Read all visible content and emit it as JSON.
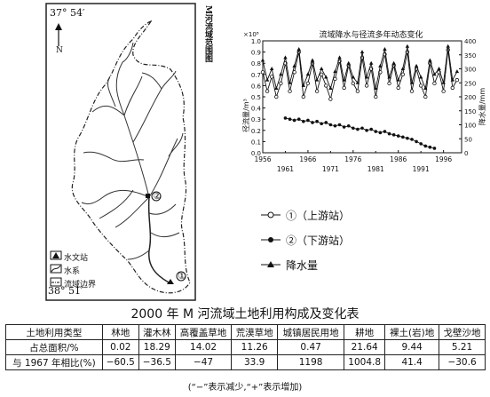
{
  "map": {
    "coord_top": "37° 54′",
    "coord_bottom": "38° 51′",
    "north_label": "N",
    "title_vertical": "M河流域范围图",
    "station_upper": "①",
    "station_lower": "②",
    "legend": [
      {
        "label": "水文站",
        "icon": "triangle-station-icon"
      },
      {
        "label": "水系",
        "icon": "river-icon"
      },
      {
        "label": "流域边界",
        "icon": "boundary-icon"
      }
    ]
  },
  "chart_data": {
    "type": "line",
    "title": "流域降水与径流多年动态变化",
    "y_left_label": "径流量/m³",
    "y_left_multiplier": "×10⁸",
    "y_right_label": "降水量/mm",
    "x_ticks_top": [
      "1956",
      "1966",
      "1976",
      "1986",
      "1996"
    ],
    "x_ticks_bottom": [
      "1961",
      "1971",
      "1981",
      "1991"
    ],
    "y_left_ticks": [
      "0.0",
      "0.1",
      "0.2",
      "0.3",
      "0.4",
      "0.5",
      "0.6",
      "0.7",
      "0.8",
      "0.9",
      "1.0"
    ],
    "y_right_ticks": [
      "0",
      "50",
      "100",
      "150",
      "200",
      "250",
      "300",
      "350",
      "400"
    ],
    "ylim_left": [
      0,
      1.0
    ],
    "ylim_right": [
      0,
      400
    ],
    "series": [
      {
        "name": "①（上游站）",
        "axis": "left",
        "marker": "open-circle",
        "x": [
          1956,
          1957,
          1958,
          1959,
          1960,
          1961,
          1962,
          1963,
          1964,
          1965,
          1966,
          1967,
          1968,
          1969,
          1970,
          1971,
          1972,
          1973,
          1974,
          1975,
          1976,
          1977,
          1978,
          1979,
          1980,
          1981,
          1982,
          1983,
          1984,
          1985,
          1986,
          1987,
          1988,
          1989,
          1990,
          1991,
          1992,
          1993,
          1994,
          1995,
          1996,
          1997,
          1998,
          1999
        ],
        "values": [
          0.72,
          0.55,
          0.68,
          0.5,
          0.62,
          0.8,
          0.55,
          0.72,
          0.9,
          0.5,
          0.62,
          0.8,
          0.55,
          0.7,
          0.6,
          0.48,
          0.66,
          0.82,
          0.58,
          0.78,
          0.62,
          0.55,
          0.85,
          0.6,
          0.75,
          0.5,
          0.72,
          0.88,
          0.62,
          0.78,
          0.58,
          0.7,
          0.9,
          0.55,
          0.75,
          0.6,
          0.5,
          0.8,
          0.62,
          0.72,
          0.55,
          0.92,
          0.58,
          0.65
        ]
      },
      {
        "name": "②（下游站）",
        "axis": "left",
        "marker": "filled-circle",
        "x": [
          1961,
          1962,
          1963,
          1964,
          1965,
          1966,
          1967,
          1968,
          1969,
          1970,
          1971,
          1972,
          1973,
          1974,
          1975,
          1976,
          1977,
          1978,
          1979,
          1980,
          1981,
          1982,
          1983,
          1984,
          1985,
          1986,
          1987,
          1988,
          1989,
          1990,
          1991,
          1992,
          1993,
          1994
        ],
        "values": [
          0.31,
          0.3,
          0.29,
          0.3,
          0.28,
          0.29,
          0.27,
          0.28,
          0.26,
          0.27,
          0.25,
          0.24,
          0.25,
          0.23,
          0.24,
          0.22,
          0.21,
          0.22,
          0.2,
          0.21,
          0.19,
          0.18,
          0.19,
          0.17,
          0.16,
          0.15,
          0.14,
          0.13,
          0.12,
          0.1,
          0.08,
          0.06,
          0.05,
          0.04
        ]
      },
      {
        "name": "降水量",
        "axis": "right",
        "marker": "filled-triangle",
        "x": [
          1956,
          1957,
          1958,
          1959,
          1960,
          1961,
          1962,
          1963,
          1964,
          1965,
          1966,
          1967,
          1968,
          1969,
          1970,
          1971,
          1972,
          1973,
          1974,
          1975,
          1976,
          1977,
          1978,
          1979,
          1980,
          1981,
          1982,
          1983,
          1984,
          1985,
          1986,
          1987,
          1988,
          1989,
          1990,
          1991,
          1992,
          1993,
          1994,
          1995,
          1996,
          1997,
          1998,
          1999
        ],
        "values": [
          330,
          260,
          300,
          230,
          280,
          340,
          250,
          310,
          370,
          240,
          280,
          330,
          260,
          300,
          270,
          230,
          290,
          340,
          260,
          320,
          270,
          250,
          360,
          270,
          320,
          230,
          310,
          370,
          270,
          320,
          260,
          300,
          380,
          250,
          310,
          270,
          230,
          330,
          280,
          300,
          250,
          380,
          260,
          290
        ]
      }
    ]
  },
  "chart_legend": [
    {
      "label": "①（上游站）",
      "marker": "open-circle"
    },
    {
      "label": "②（下游站）",
      "marker": "filled-circle"
    },
    {
      "label": "降水量",
      "marker": "filled-triangle"
    }
  ],
  "table": {
    "title": "2000 年 M 河流域土地利用构成及变化表",
    "header": [
      "土地利用类型",
      "林地",
      "灌木林",
      "高覆盖草地",
      "荒漠草地",
      "城镇居民用地",
      "耕地",
      "裸土(岩)地",
      "戈壁沙地"
    ],
    "rows": [
      [
        "占总面积/%",
        "0.02",
        "18.29",
        "14.02",
        "11.26",
        "0.47",
        "21.64",
        "9.44",
        "5.21"
      ],
      [
        "与 1967 年相比(%)",
        "−60.5",
        "−36.5",
        "−47",
        "33.9",
        "1198",
        "1004.8",
        "41.4",
        "−30.6"
      ]
    ],
    "note": "(“−”表示减少,“+”表示增加)"
  }
}
